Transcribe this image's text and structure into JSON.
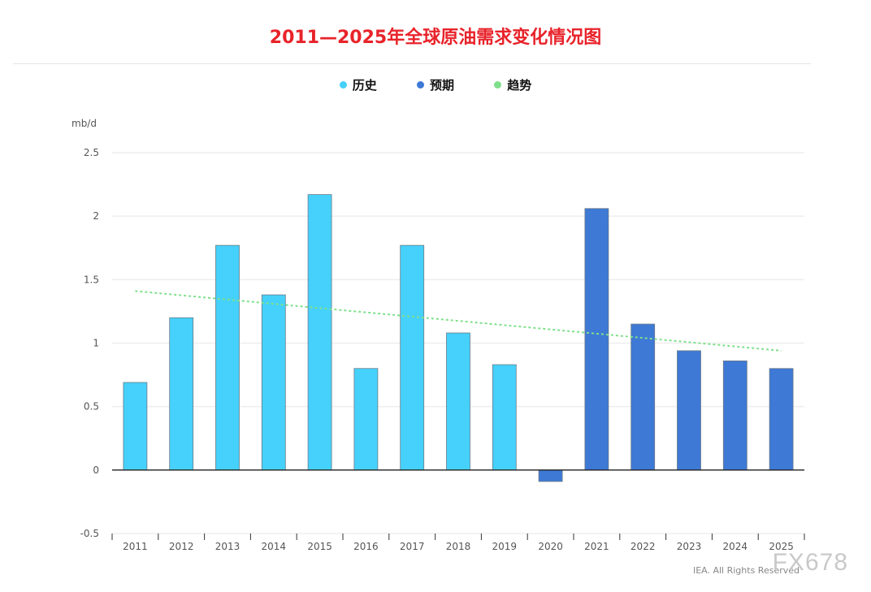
{
  "chart_data": {
    "type": "bar",
    "title": "2011—2025年全球原油需求变化情况图",
    "ylabel": "mb/d",
    "ylim": [
      -0.5,
      2.5
    ],
    "yticks": [
      "2.5",
      "2",
      "1.5",
      "1",
      "0.5",
      "0",
      "-0.5"
    ],
    "grid": true,
    "legend_position": "top-center",
    "legend": [
      {
        "label": "历史",
        "color": "#45d1fb"
      },
      {
        "label": "预期",
        "color": "#3e79d6"
      },
      {
        "label": "趋势",
        "color": "#7fe08b"
      }
    ],
    "categories": [
      "2011",
      "2012",
      "2013",
      "2014",
      "2015",
      "2016",
      "2017",
      "2018",
      "2019",
      "2020",
      "2021",
      "2022",
      "2023",
      "2024",
      "2025"
    ],
    "values": [
      0.69,
      1.2,
      1.77,
      1.38,
      2.17,
      0.8,
      1.77,
      1.08,
      0.83,
      -0.09,
      2.06,
      1.15,
      0.94,
      0.86,
      0.8
    ],
    "series_kind": [
      "历史",
      "历史",
      "历史",
      "历史",
      "历史",
      "历史",
      "历史",
      "历史",
      "历史",
      "预期",
      "预期",
      "预期",
      "预期",
      "预期",
      "预期"
    ],
    "trend": {
      "start": 1.41,
      "end": 0.94
    },
    "source": "IEA. All Rights Reserved"
  },
  "watermark": "FX678"
}
